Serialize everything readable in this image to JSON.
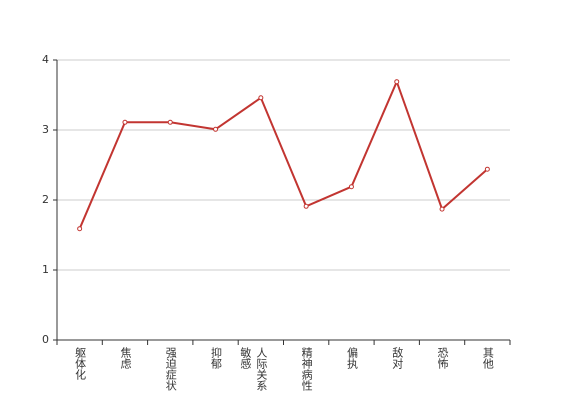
{
  "chart_data": {
    "type": "line",
    "categories": [
      "躯体化",
      "焦虑",
      "强迫症状",
      "抑郁",
      "人际关系敏感",
      "精神病性",
      "偏执",
      "敌对",
      "恐怖",
      "其他"
    ],
    "series": [
      {
        "color": "#c23531",
        "values": [
          1.59,
          3.11,
          3.11,
          3.01,
          3.46,
          1.91,
          2.19,
          3.69,
          1.87,
          2.44
        ]
      }
    ],
    "ylim": [
      0,
      4
    ],
    "yticks": [
      0,
      1,
      2,
      3,
      4
    ],
    "grid": true
  }
}
